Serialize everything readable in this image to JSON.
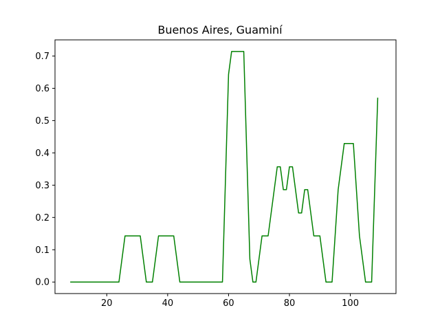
{
  "chart_data": {
    "type": "line",
    "title": "Buenos Aires, Guaminí",
    "xlabel": "",
    "ylabel": "",
    "xlim": [
      3,
      115
    ],
    "ylim": [
      -0.0357,
      0.75
    ],
    "xticks": [
      20,
      40,
      60,
      80,
      100
    ],
    "yticks": [
      0.0,
      0.1,
      0.2,
      0.3,
      0.4,
      0.5,
      0.6,
      0.7
    ],
    "xtick_labels": [
      "20",
      "40",
      "60",
      "80",
      "100"
    ],
    "ytick_labels": [
      "0.0",
      "0.1",
      "0.2",
      "0.3",
      "0.4",
      "0.5",
      "0.6",
      "0.7"
    ],
    "grid": false,
    "series": [
      {
        "color": "#008000",
        "x": [
          8,
          24,
          26,
          31,
          33,
          35,
          37,
          42,
          44,
          58,
          60,
          61,
          65,
          67,
          68,
          69,
          71,
          73,
          76,
          77,
          78,
          79,
          80,
          81,
          83,
          84,
          85,
          86,
          88,
          90,
          92,
          94,
          96,
          98,
          101,
          103,
          105,
          107,
          109
        ],
        "y": [
          0,
          0,
          0.143,
          0.143,
          0,
          0,
          0.143,
          0.143,
          0,
          0,
          0.643,
          0.714,
          0.714,
          0.071,
          0,
          0,
          0.143,
          0.143,
          0.357,
          0.357,
          0.286,
          0.286,
          0.357,
          0.357,
          0.214,
          0.214,
          0.286,
          0.286,
          0.143,
          0.143,
          0,
          0,
          0.286,
          0.429,
          0.429,
          0.143,
          0,
          0,
          0.571
        ]
      }
    ]
  }
}
